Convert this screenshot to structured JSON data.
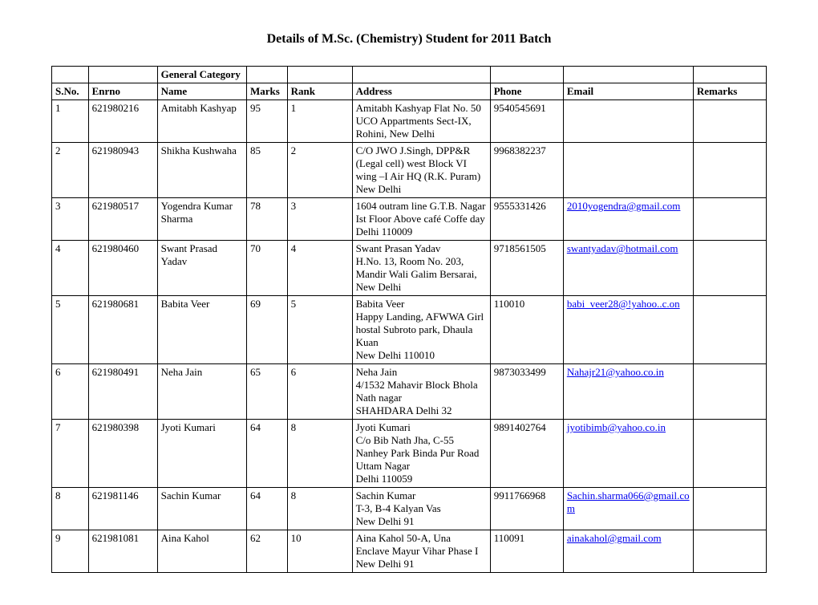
{
  "title": "Details of M.Sc. (Chemistry) Student for 2011 Batch",
  "category_label": "General Category",
  "columns": {
    "sno": "S.No.",
    "enrno": "Enrno",
    "name": "Name",
    "marks": "Marks",
    "rank": "Rank",
    "address": "Address",
    "phone": "Phone",
    "email": "Email",
    "remarks": "Remarks"
  },
  "link_color": "#0000ee",
  "rows": [
    {
      "sno": "1",
      "enrno": "621980216",
      "name": "Amitabh Kashyap",
      "marks": "95",
      "rank": "1",
      "address": [
        "Amitabh Kashyap Flat No. 50",
        "UCO Appartments Sect-IX, Rohini, New Delhi"
      ],
      "phone": "9540545691",
      "email": "",
      "remarks": ""
    },
    {
      "sno": "2",
      "enrno": "621980943",
      "name": "Shikha Kushwaha",
      "marks": "85",
      "rank": "2",
      "address": [
        "C/O JWO J.Singh, DPP&R (Legal cell) west Block VI wing –I Air HQ (R.K. Puram) New Delhi"
      ],
      "phone": "9968382237",
      "email": "",
      "remarks": ""
    },
    {
      "sno": "3",
      "enrno": "621980517",
      "name": "Yogendra Kumar Sharma",
      "marks": "78",
      "rank": "3",
      "address": [
        "1604 outram line G.T.B. Nagar Ist Floor Above café Coffe day Delhi 110009"
      ],
      "phone": "9555331426",
      "email": "2010yogendra@gmail.com",
      "remarks": ""
    },
    {
      "sno": "4",
      "enrno": "621980460",
      "name": "Swant Prasad Yadav",
      "marks": "70",
      "rank": "4",
      "address": [
        "Swant Prasan Yadav",
        "H.No. 13, Room No. 203, Mandir Wali Galim Bersarai, New Delhi"
      ],
      "phone": "9718561505",
      "email": "swantyadav@hotmail.com",
      "remarks": ""
    },
    {
      "sno": "5",
      "enrno": "621980681",
      "name": "Babita Veer",
      "marks": "69",
      "rank": "5",
      "address": [
        "Babita Veer",
        "Happy Landing, AFWWA Girl hostal Subroto park, Dhaula Kuan",
        "New Delhi 110010"
      ],
      "phone": "110010",
      "email": "babi_veer28@!yahoo..c.on",
      "remarks": ""
    },
    {
      "sno": "6",
      "enrno": "621980491",
      "name": "Neha Jain",
      "marks": "65",
      "rank": "6",
      "address": [
        "Neha Jain",
        "4/1532 Mahavir Block Bhola Nath nagar",
        "SHAHDARA Delhi 32"
      ],
      "phone": "9873033499",
      "email": "Nahajr21@yahoo.co.in",
      "remarks": ""
    },
    {
      "sno": "7",
      "enrno": "621980398",
      "name": "Jyoti Kumari",
      "marks": "64",
      "rank": "8",
      "address": [
        "Jyoti Kumari",
        "C/o Bib Nath Jha, C-55 Nanhey Park Binda Pur Road Uttam Nagar",
        "Delhi 110059"
      ],
      "phone": "9891402764",
      "email": "jyotibimb@yahoo.co.in",
      "remarks": ""
    },
    {
      "sno": "8",
      "enrno": "621981146",
      "name": "Sachin Kumar",
      "marks": "64",
      "rank": "8",
      "address": [
        "Sachin Kumar",
        "T-3, B-4 Kalyan Vas",
        "New Delhi 91"
      ],
      "phone": "9911766968",
      "email": "Sachin.sharma066@gmail.com",
      "remarks": ""
    },
    {
      "sno": "9",
      "enrno": "621981081",
      "name": "Aina Kahol",
      "marks": "62",
      "rank": "10",
      "address": [
        "Aina Kahol 50-A, Una Enclave Mayur Vihar Phase I New Delhi 91"
      ],
      "phone": "110091",
      "email": "ainakahol@gmail.com",
      "remarks": ""
    }
  ]
}
